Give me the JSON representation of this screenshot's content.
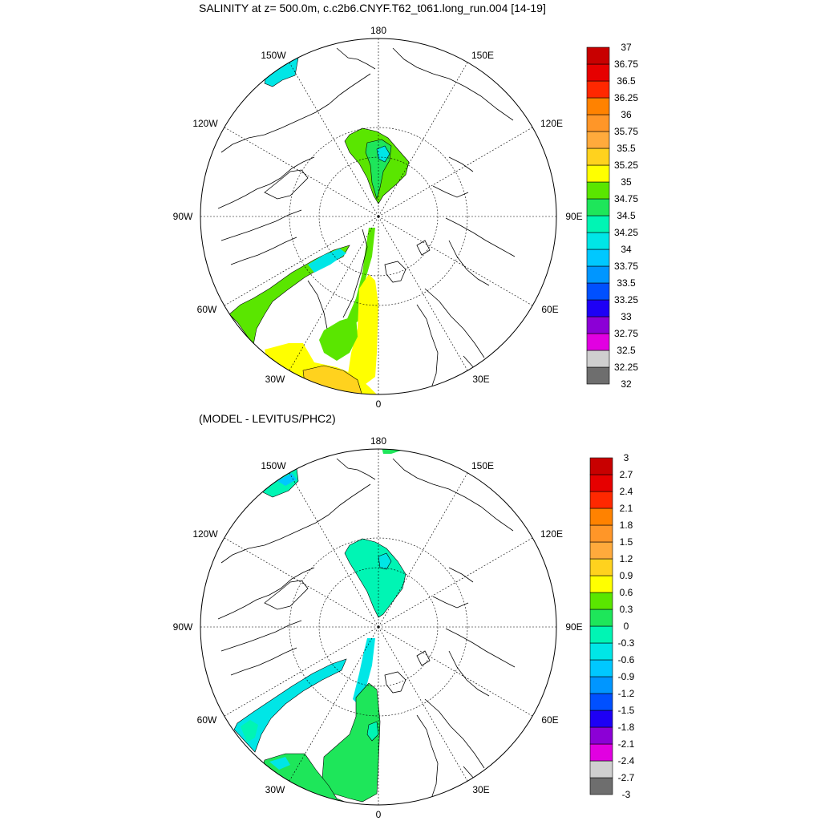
{
  "titles": {
    "main": "SALINITY at z= 500.0m, c.c2b6.CNYF.T62_t061.long_run.004 [14-19]",
    "diff": "(MODEL - LEVITUS/PHC2)"
  },
  "map_labels": {
    "top": "180",
    "upper_left": "150W",
    "upper_right": "150E",
    "left_upper": "120W",
    "right_upper": "120E",
    "left": "90W",
    "right": "90E",
    "left_lower": "60W",
    "right_lower": "60E",
    "lower_left": "30W",
    "lower_right": "30E",
    "bottom": "0"
  },
  "colorbar_colors": [
    "#6e6e6e",
    "#cfcfcf",
    "#e100e1",
    "#8c00d6",
    "#1e00f5",
    "#0050ff",
    "#0096ff",
    "#00c8ff",
    "#00e6e6",
    "#00f5b4",
    "#1ee65a",
    "#5ae600",
    "#ffff00",
    "#ffd21e",
    "#ffaa3c",
    "#ff9628",
    "#ff8200",
    "#ff2800",
    "#e60000",
    "#c80000"
  ],
  "colorbar_salinity": [
    "32",
    "32.25",
    "32.5",
    "32.75",
    "33",
    "33.25",
    "33.5",
    "33.75",
    "34",
    "34.25",
    "34.5",
    "34.75",
    "35",
    "35.25",
    "35.5",
    "35.75",
    "36",
    "36.25",
    "36.5",
    "36.75",
    "37"
  ],
  "colorbar_diff": [
    "-3",
    "-2.7",
    "-2.4",
    "-2.1",
    "-1.8",
    "-1.5",
    "-1.2",
    "-0.9",
    "-0.6",
    "-0.3",
    "0",
    "0.3",
    "0.6",
    "0.9",
    "1.2",
    "1.5",
    "1.8",
    "2.1",
    "2.4",
    "2.7",
    "3"
  ]
}
